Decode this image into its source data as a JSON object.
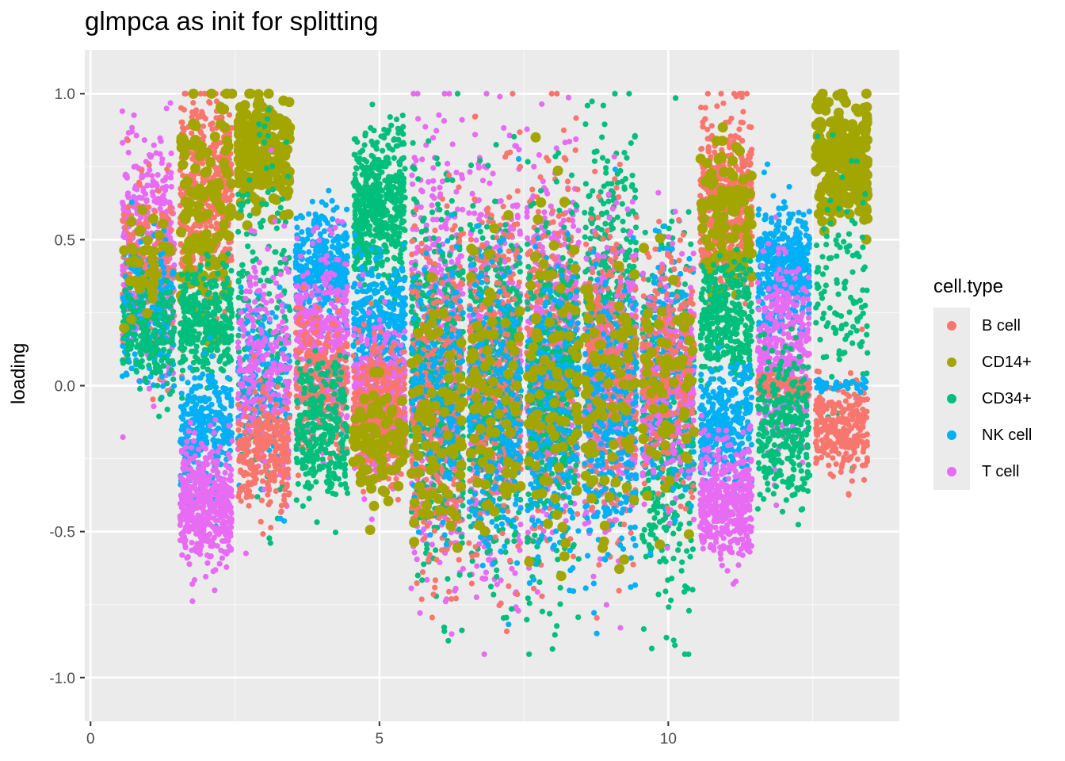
{
  "chart_data": {
    "type": "scatter",
    "title": "glmpca as init for splitting",
    "xlabel": "",
    "ylabel": "loading",
    "xlim": [
      -0.1,
      14.0
    ],
    "ylim": [
      -1.15,
      1.15
    ],
    "x_ticks": [
      0,
      5,
      10
    ],
    "y_ticks": [
      1.0,
      0.5,
      0.0,
      -0.5,
      -1.0
    ],
    "x_tick_labels": [
      "0",
      "5",
      "10"
    ],
    "y_tick_labels": [
      "1.0",
      "0.5",
      "0.0",
      "-0.5",
      "-1.0"
    ],
    "grid": true,
    "legend": {
      "title": "cell.type",
      "position": "right",
      "entries": [
        {
          "name": "B cell",
          "color": "#F8766D"
        },
        {
          "name": "CD14+",
          "color": "#A3A500"
        },
        {
          "name": "CD34+",
          "color": "#00BF7D"
        },
        {
          "name": "NK cell",
          "color": "#00B0F6"
        },
        {
          "name": "T cell",
          "color": "#E76BF3"
        }
      ]
    },
    "jitter_width": 0.9,
    "clusters": [
      {
        "x": 1,
        "series": "T cell",
        "center": 0.45,
        "spread": 0.18,
        "n": 450
      },
      {
        "x": 1,
        "series": "B cell",
        "center": 0.38,
        "spread": 0.15,
        "n": 180
      },
      {
        "x": 1,
        "series": "NK cell",
        "center": 0.25,
        "spread": 0.12,
        "n": 200
      },
      {
        "x": 1,
        "series": "CD34+",
        "center": 0.18,
        "spread": 0.1,
        "n": 200
      },
      {
        "x": 1,
        "series": "CD14+",
        "center": 0.38,
        "spread": 0.1,
        "n": 40
      },
      {
        "x": 2,
        "series": "B cell",
        "center": 0.63,
        "spread": 0.18,
        "n": 500
      },
      {
        "x": 2,
        "series": "CD14+",
        "center": 0.62,
        "spread": 0.2,
        "n": 120
      },
      {
        "x": 2,
        "series": "CD34+",
        "center": 0.2,
        "spread": 0.1,
        "n": 350
      },
      {
        "x": 2,
        "series": "NK cell",
        "center": -0.15,
        "spread": 0.1,
        "n": 300
      },
      {
        "x": 2,
        "series": "T cell",
        "center": -0.4,
        "spread": 0.1,
        "n": 450
      },
      {
        "x": 3,
        "series": "CD14+",
        "center": 0.8,
        "spread": 0.1,
        "n": 220
      },
      {
        "x": 3,
        "series": "CD34+",
        "center": 0.2,
        "spread": 0.3,
        "n": 200
      },
      {
        "x": 3,
        "series": "NK cell",
        "center": 0.0,
        "spread": 0.15,
        "n": 200
      },
      {
        "x": 3,
        "series": "T cell",
        "center": 0.05,
        "spread": 0.2,
        "n": 250
      },
      {
        "x": 3,
        "series": "B cell",
        "center": -0.23,
        "spread": 0.1,
        "n": 280
      },
      {
        "x": 4,
        "series": "NK cell",
        "center": 0.4,
        "spread": 0.09,
        "n": 400
      },
      {
        "x": 4,
        "series": "T cell",
        "center": 0.15,
        "spread": 0.15,
        "n": 400
      },
      {
        "x": 4,
        "series": "B cell",
        "center": 0.0,
        "spread": 0.12,
        "n": 250
      },
      {
        "x": 4,
        "series": "CD34+",
        "center": -0.15,
        "spread": 0.12,
        "n": 300
      },
      {
        "x": 5,
        "series": "CD34+",
        "center": 0.6,
        "spread": 0.13,
        "n": 550
      },
      {
        "x": 5,
        "series": "NK cell",
        "center": 0.22,
        "spread": 0.1,
        "n": 350
      },
      {
        "x": 5,
        "series": "T cell",
        "center": -0.05,
        "spread": 0.12,
        "n": 400
      },
      {
        "x": 5,
        "series": "B cell",
        "center": -0.1,
        "spread": 0.12,
        "n": 300
      },
      {
        "x": 5,
        "series": "CD14+",
        "center": -0.2,
        "spread": 0.1,
        "n": 90
      },
      {
        "x": 6,
        "series": "T cell",
        "center": 0.1,
        "spread": 0.35,
        "n": 550
      },
      {
        "x": 6,
        "series": "CD34+",
        "center": 0.0,
        "spread": 0.3,
        "n": 500
      },
      {
        "x": 6,
        "series": "B cell",
        "center": -0.05,
        "spread": 0.3,
        "n": 350
      },
      {
        "x": 6,
        "series": "NK cell",
        "center": 0.0,
        "spread": 0.2,
        "n": 200
      },
      {
        "x": 6,
        "series": "CD14+",
        "center": -0.1,
        "spread": 0.25,
        "n": 80
      },
      {
        "x": 7,
        "series": "T cell",
        "center": 0.05,
        "spread": 0.35,
        "n": 450
      },
      {
        "x": 7,
        "series": "CD34+",
        "center": 0.0,
        "spread": 0.3,
        "n": 500
      },
      {
        "x": 7,
        "series": "B cell",
        "center": 0.05,
        "spread": 0.3,
        "n": 350
      },
      {
        "x": 7,
        "series": "NK cell",
        "center": -0.05,
        "spread": 0.25,
        "n": 300
      },
      {
        "x": 7,
        "series": "CD14+",
        "center": 0.0,
        "spread": 0.25,
        "n": 80
      },
      {
        "x": 8,
        "series": "T cell",
        "center": 0.15,
        "spread": 0.3,
        "n": 450
      },
      {
        "x": 8,
        "series": "B cell",
        "center": 0.1,
        "spread": 0.3,
        "n": 350
      },
      {
        "x": 8,
        "series": "CD34+",
        "center": -0.05,
        "spread": 0.3,
        "n": 400
      },
      {
        "x": 8,
        "series": "NK cell",
        "center": -0.1,
        "spread": 0.25,
        "n": 300
      },
      {
        "x": 8,
        "series": "CD14+",
        "center": 0.05,
        "spread": 0.3,
        "n": 90
      },
      {
        "x": 9,
        "series": "CD34+",
        "center": 0.25,
        "spread": 0.3,
        "n": 450
      },
      {
        "x": 9,
        "series": "T cell",
        "center": 0.0,
        "spread": 0.25,
        "n": 400
      },
      {
        "x": 9,
        "series": "B cell",
        "center": 0.05,
        "spread": 0.25,
        "n": 350
      },
      {
        "x": 9,
        "series": "NK cell",
        "center": -0.15,
        "spread": 0.25,
        "n": 300
      },
      {
        "x": 9,
        "series": "CD14+",
        "center": -0.05,
        "spread": 0.25,
        "n": 80
      },
      {
        "x": 10,
        "series": "CD34+",
        "center": -0.15,
        "spread": 0.3,
        "n": 450
      },
      {
        "x": 10,
        "series": "NK cell",
        "center": 0.05,
        "spread": 0.2,
        "n": 300
      },
      {
        "x": 10,
        "series": "T cell",
        "center": 0.0,
        "spread": 0.2,
        "n": 300
      },
      {
        "x": 10,
        "series": "B cell",
        "center": 0.05,
        "spread": 0.2,
        "n": 250
      },
      {
        "x": 10,
        "series": "CD14+",
        "center": 0.0,
        "spread": 0.2,
        "n": 60
      },
      {
        "x": 11,
        "series": "B cell",
        "center": 0.62,
        "spread": 0.15,
        "n": 500
      },
      {
        "x": 11,
        "series": "CD14+",
        "center": 0.55,
        "spread": 0.15,
        "n": 100
      },
      {
        "x": 11,
        "series": "CD34+",
        "center": 0.22,
        "spread": 0.1,
        "n": 350
      },
      {
        "x": 11,
        "series": "NK cell",
        "center": -0.15,
        "spread": 0.1,
        "n": 350
      },
      {
        "x": 11,
        "series": "T cell",
        "center": -0.4,
        "spread": 0.1,
        "n": 450
      },
      {
        "x": 12,
        "series": "NK cell",
        "center": 0.4,
        "spread": 0.1,
        "n": 400
      },
      {
        "x": 12,
        "series": "T cell",
        "center": 0.1,
        "spread": 0.15,
        "n": 400
      },
      {
        "x": 12,
        "series": "B cell",
        "center": 0.0,
        "spread": 0.02,
        "n": 150
      },
      {
        "x": 12,
        "series": "CD34+",
        "center": -0.15,
        "spread": 0.12,
        "n": 300
      },
      {
        "x": 13,
        "series": "CD14+",
        "center": 0.78,
        "spread": 0.1,
        "n": 250
      },
      {
        "x": 13,
        "series": "CD34+",
        "center": 0.3,
        "spread": 0.2,
        "n": 120
      },
      {
        "x": 13,
        "series": "B cell",
        "center": -0.15,
        "spread": 0.08,
        "n": 280
      },
      {
        "x": 13,
        "series": "NK cell",
        "center": 0.0,
        "spread": 0.01,
        "n": 40
      }
    ]
  }
}
